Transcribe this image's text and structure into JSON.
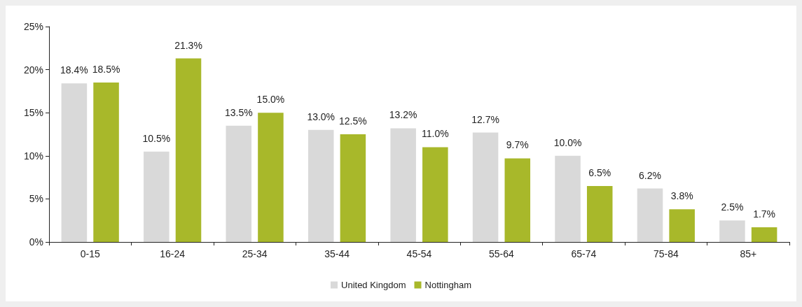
{
  "chart_data": {
    "type": "bar",
    "categories": [
      "0-15",
      "16-24",
      "25-34",
      "35-44",
      "45-54",
      "55-64",
      "65-74",
      "75-84",
      "85+"
    ],
    "series": [
      {
        "name": "United Kingdom",
        "color": "#d9d9d9",
        "values": [
          18.4,
          10.5,
          13.5,
          13.0,
          13.2,
          12.7,
          10.0,
          6.2,
          2.5
        ],
        "value_labels": [
          "18.4%",
          "10.5%",
          "13.5%",
          "13.0%",
          "13.2%",
          "12.7%",
          "10.0%",
          "6.2%",
          "2.5%"
        ]
      },
      {
        "name": "Nottingham",
        "color": "#a8b82a",
        "values": [
          18.5,
          21.3,
          15.0,
          12.5,
          11.0,
          9.7,
          6.5,
          3.8,
          1.7
        ],
        "value_labels": [
          "18.5%",
          "21.3%",
          "15.0%",
          "12.5%",
          "11.0%",
          "9.7%",
          "6.5%",
          "3.8%",
          "1.7%"
        ]
      }
    ],
    "ylim": [
      0,
      25
    ],
    "yticks": [
      {
        "value": 0,
        "label": "0%"
      },
      {
        "value": 5,
        "label": "5%"
      },
      {
        "value": 10,
        "label": "10%"
      },
      {
        "value": 15,
        "label": "15%"
      },
      {
        "value": 20,
        "label": "20%"
      },
      {
        "value": 25,
        "label": "25%"
      }
    ],
    "grid": false,
    "legend": "bottom"
  }
}
